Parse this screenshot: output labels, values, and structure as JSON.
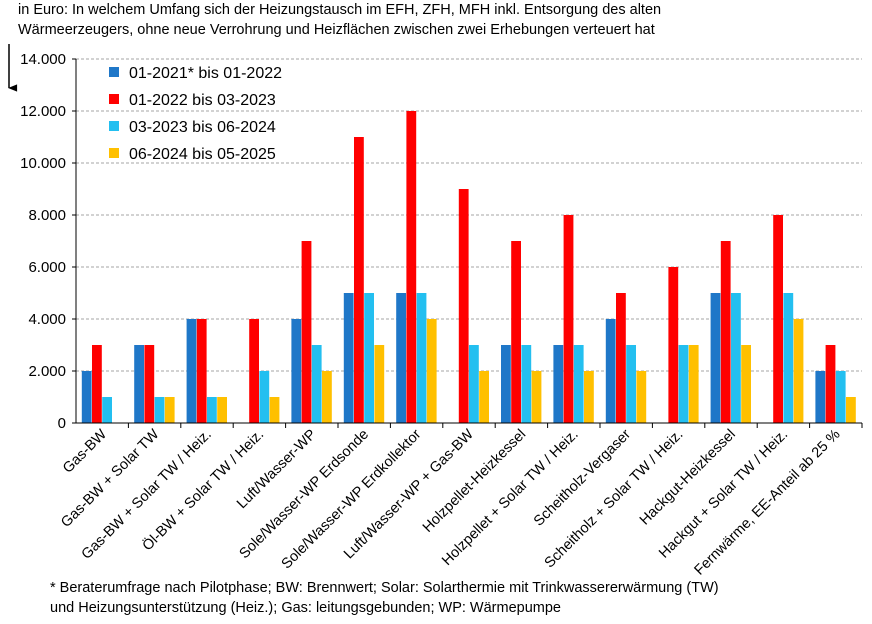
{
  "header": {
    "line1": "in Euro: In welchem Umfang sich der Heizungstausch im EFH, ZFH, MFH inkl. Entsorgung des alten",
    "line2": "Wärmeerzeugers, ohne neue Verrohrung und Heizflächen zwischen zwei Erhebungen verteuert hat"
  },
  "footnote": {
    "line1": "* Beraterumfrage nach Pilotphase; BW: Brennwert; Solar: Solarthermie mit Trinkwassererwärmung (TW)",
    "line2": "und Heizungsunterstützung (Heiz.); Gas: leitungsgebunden; WP: Wärmepumpe"
  },
  "chart_data": {
    "type": "bar",
    "categories": [
      "Gas-BW",
      "Gas-BW + Solar TW",
      "Gas-BW + Solar TW / Heiz.",
      "Öl-BW + Solar TW / Heiz.",
      "Luft/Wasser-WP",
      "Sole/Wasser-WP Erdsonde",
      "Sole/Wasser-WP Erdkollektor",
      "Luft/Wasser-WP + Gas-BW",
      "Holzpellet-Heizkessel",
      "Holzpellet + Solar TW / Heiz.",
      "Scheitholz-Vergaser",
      "Scheitholz + Solar TW / Heiz.",
      "Hackgut-Heizkessel",
      "Hackgut + Solar TW / Heiz.",
      "Fernwärme, EE-Anteil ab 25 %"
    ],
    "series": [
      {
        "name": "01-2021* bis 01-2022",
        "color": "#1f77c8",
        "values": [
          2000,
          3000,
          4000,
          0,
          4000,
          5000,
          5000,
          0,
          3000,
          3000,
          4000,
          0,
          5000,
          0,
          2000
        ]
      },
      {
        "name": "01-2022 bis 03-2023",
        "color": "#ff0000",
        "values": [
          3000,
          3000,
          4000,
          4000,
          7000,
          11000,
          12000,
          9000,
          7000,
          8000,
          5000,
          6000,
          7000,
          8000,
          3000
        ]
      },
      {
        "name": "03-2023 bis 06-2024",
        "color": "#23bff0",
        "values": [
          1000,
          1000,
          1000,
          2000,
          3000,
          5000,
          5000,
          3000,
          3000,
          3000,
          3000,
          3000,
          5000,
          5000,
          2000
        ]
      },
      {
        "name": "06-2024 bis 05-2025",
        "color": "#ffc000",
        "values": [
          0,
          1000,
          1000,
          1000,
          2000,
          3000,
          4000,
          2000,
          2000,
          2000,
          2000,
          3000,
          3000,
          4000,
          1000
        ]
      }
    ],
    "ylim": [
      0,
      14000
    ],
    "yticks": [
      0,
      2000,
      4000,
      6000,
      8000,
      10000,
      12000,
      14000
    ],
    "ytick_labels": [
      "0",
      "2.000",
      "4.000",
      "6.000",
      "8.000",
      "10.000",
      "12.000",
      "14.000"
    ],
    "grid": "horizontal dashed",
    "legend_position": "top-left"
  }
}
